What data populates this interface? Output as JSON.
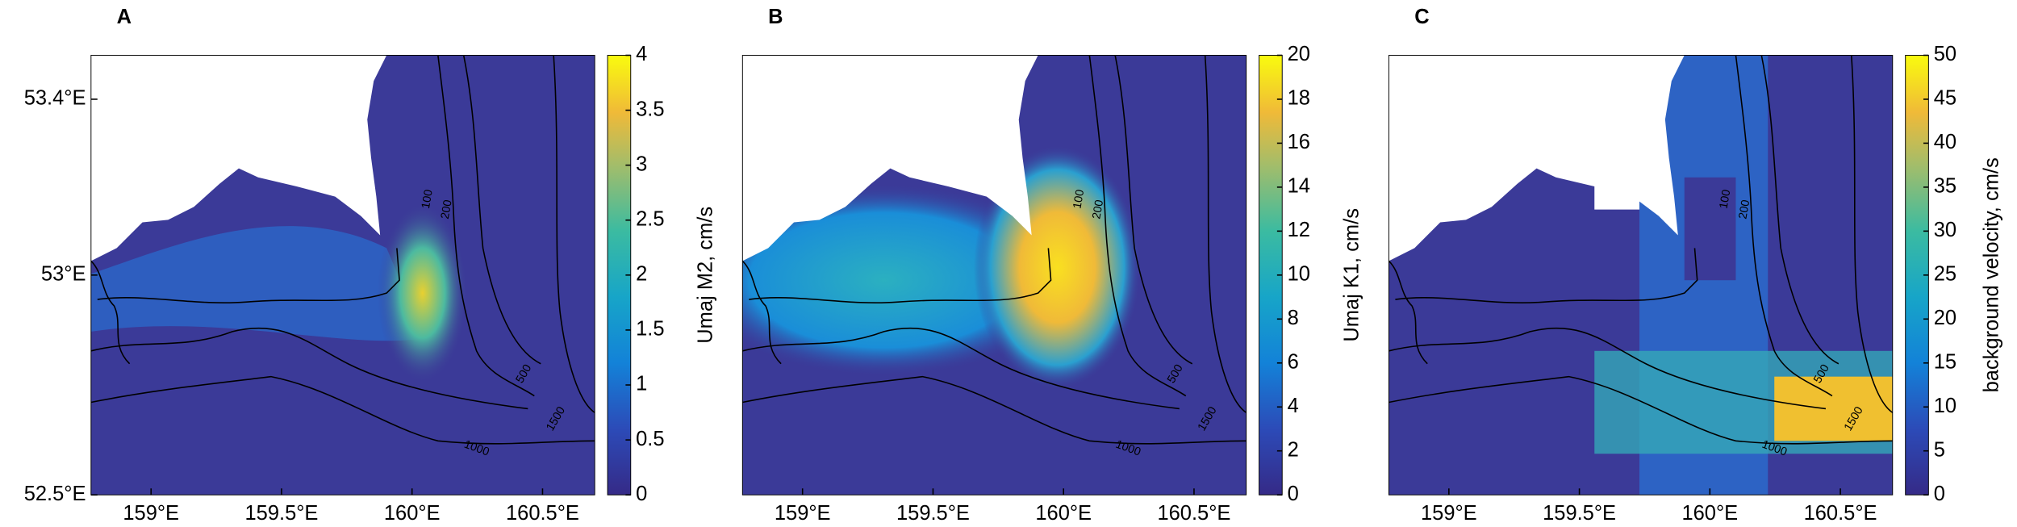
{
  "map": {
    "xlim": [
      158.77,
      160.7
    ],
    "ylim": [
      52.5,
      53.5
    ]
  },
  "panels": [
    {
      "label": "A",
      "xticks": [
        {
          "value": 159,
          "label": "159°E"
        },
        {
          "value": 159.5,
          "label": "159.5°E"
        },
        {
          "value": 160,
          "label": "160°E"
        },
        {
          "value": 160.5,
          "label": "160.5°E"
        }
      ],
      "yticks": [
        {
          "value": 53.4,
          "label": "53.4°E"
        },
        {
          "value": 53,
          "label": "53°E"
        },
        {
          "value": 52.5,
          "label": "52.5°E"
        }
      ],
      "colorbar": {
        "lim": [
          0,
          4
        ],
        "ticks": [
          0,
          0.5,
          1,
          1.5,
          2,
          2.5,
          3,
          3.5,
          4
        ]
      },
      "contour_labels": [
        "100",
        "200",
        "500",
        "1000",
        "1500"
      ]
    },
    {
      "label": "B",
      "ylabel": "Umaj M2, cm/s",
      "xticks": [
        {
          "value": 159,
          "label": "159°E"
        },
        {
          "value": 159.5,
          "label": "159.5°E"
        },
        {
          "value": 160,
          "label": "160°E"
        },
        {
          "value": 160.5,
          "label": "160.5°E"
        }
      ],
      "colorbar": {
        "lim": [
          0,
          20
        ],
        "ticks": [
          0,
          2,
          4,
          6,
          8,
          10,
          12,
          14,
          16,
          18,
          20
        ]
      },
      "contour_labels": [
        "100",
        "200",
        "500",
        "1000",
        "1500"
      ]
    },
    {
      "label": "C",
      "ylabel": "Umaj K1, cm/s",
      "xticks": [
        {
          "value": 159,
          "label": "159°E"
        },
        {
          "value": 159.5,
          "label": "159.5°E"
        },
        {
          "value": 160,
          "label": "160°E"
        },
        {
          "value": 160.5,
          "label": "160.5°E"
        }
      ],
      "colorbar": {
        "lim": [
          0,
          50
        ],
        "ticks": [
          0,
          5,
          10,
          15,
          20,
          25,
          30,
          35,
          40,
          45,
          50
        ],
        "label": "background velocity, cm/s"
      },
      "contour_labels": [
        "100",
        "200",
        "500",
        "1000",
        "1500"
      ]
    }
  ]
}
